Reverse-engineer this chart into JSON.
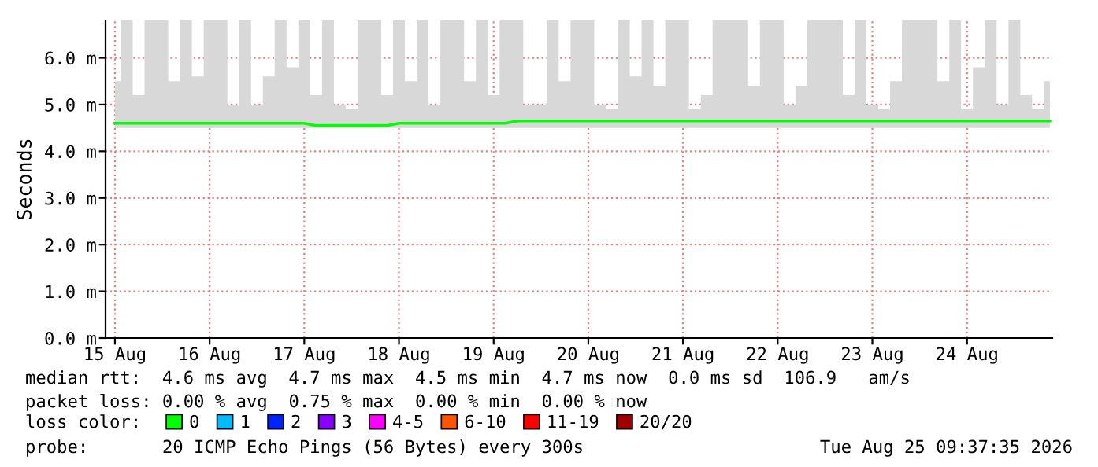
{
  "chart_data": {
    "type": "line",
    "ylabel": "Seconds",
    "x": [
      "2026-08-15T12:00",
      "2026-08-15T15:00",
      "2026-08-15T18:00",
      "2026-08-15T21:00",
      "2026-08-16T00:00",
      "2026-08-16T03:00",
      "2026-08-16T06:00",
      "2026-08-16T09:00",
      "2026-08-16T12:00",
      "2026-08-16T15:00",
      "2026-08-16T18:00",
      "2026-08-16T21:00",
      "2026-08-17T00:00",
      "2026-08-17T03:00",
      "2026-08-17T06:00",
      "2026-08-17T09:00",
      "2026-08-17T12:00",
      "2026-08-17T15:00",
      "2026-08-17T18:00",
      "2026-08-17T21:00",
      "2026-08-18T00:00",
      "2026-08-18T03:00",
      "2026-08-18T06:00",
      "2026-08-18T09:00",
      "2026-08-18T12:00",
      "2026-08-18T15:00",
      "2026-08-18T18:00",
      "2026-08-18T21:00",
      "2026-08-19T00:00",
      "2026-08-19T03:00",
      "2026-08-19T06:00",
      "2026-08-19T09:00",
      "2026-08-19T12:00",
      "2026-08-19T15:00",
      "2026-08-19T18:00",
      "2026-08-19T21:00",
      "2026-08-20T00:00",
      "2026-08-20T03:00",
      "2026-08-20T06:00",
      "2026-08-20T09:00",
      "2026-08-20T12:00",
      "2026-08-20T15:00",
      "2026-08-20T18:00",
      "2026-08-20T21:00",
      "2026-08-21T00:00",
      "2026-08-21T03:00",
      "2026-08-21T06:00",
      "2026-08-21T09:00",
      "2026-08-21T12:00",
      "2026-08-21T15:00",
      "2026-08-21T18:00",
      "2026-08-21T21:00",
      "2026-08-22T00:00",
      "2026-08-22T03:00",
      "2026-08-22T06:00",
      "2026-08-22T09:00",
      "2026-08-22T12:00",
      "2026-08-22T15:00",
      "2026-08-22T18:00",
      "2026-08-22T21:00",
      "2026-08-23T00:00",
      "2026-08-23T03:00",
      "2026-08-23T06:00",
      "2026-08-23T09:00",
      "2026-08-23T12:00",
      "2026-08-23T15:00",
      "2026-08-23T18:00",
      "2026-08-23T21:00",
      "2026-08-24T00:00",
      "2026-08-24T03:00",
      "2026-08-24T06:00",
      "2026-08-24T09:00",
      "2026-08-24T12:00",
      "2026-08-24T15:00",
      "2026-08-24T18:00",
      "2026-08-24T21:00",
      "2026-08-25T00:00",
      "2026-08-25T03:00",
      "2026-08-25T06:00",
      "2026-08-25T09:00"
    ],
    "series": [
      {
        "name": "0",
        "color": "#00ff00",
        "values": [
          4.6,
          4.6,
          4.6,
          4.6,
          4.6,
          4.6,
          4.6,
          4.6,
          4.6,
          4.6,
          4.6,
          4.6,
          4.6,
          4.6,
          4.6,
          4.6,
          4.6,
          4.55,
          4.55,
          4.55,
          4.55,
          4.55,
          4.55,
          4.55,
          4.6,
          4.6,
          4.6,
          4.6,
          4.6,
          4.6,
          4.6,
          4.6,
          4.6,
          4.6,
          4.65,
          4.65,
          4.65,
          4.65,
          4.65,
          4.65,
          4.65,
          4.65,
          4.65,
          4.65,
          4.65,
          4.65,
          4.65,
          4.65,
          4.65,
          4.65,
          4.65,
          4.65,
          4.65,
          4.65,
          4.65,
          4.65,
          4.65,
          4.65,
          4.65,
          4.65,
          4.65,
          4.65,
          4.65,
          4.65,
          4.65,
          4.65,
          4.65,
          4.65,
          4.65,
          4.65,
          4.65,
          4.65,
          4.65,
          4.65,
          4.65,
          4.65,
          4.65,
          4.65,
          4.65,
          4.65
        ],
        "lower": [
          4.5,
          4.5,
          4.5,
          4.5,
          4.5,
          4.5,
          4.5,
          4.5,
          4.5,
          4.5,
          4.5,
          4.5,
          4.5,
          4.5,
          4.5,
          4.5,
          4.5,
          4.5,
          4.5,
          4.5,
          4.5,
          4.5,
          4.5,
          4.5,
          4.5,
          4.5,
          4.5,
          4.5,
          4.5,
          4.5,
          4.5,
          4.5,
          4.5,
          4.5,
          4.5,
          4.5,
          4.5,
          4.5,
          4.5,
          4.5,
          4.5,
          4.5,
          4.5,
          4.5,
          4.5,
          4.5,
          4.5,
          4.5,
          4.5,
          4.5,
          4.5,
          4.5,
          4.5,
          4.5,
          4.5,
          4.5,
          4.5,
          4.5,
          4.5,
          4.5,
          4.5,
          4.5,
          4.5,
          4.5,
          4.5,
          4.5,
          4.5,
          4.5,
          4.5,
          4.5,
          4.5,
          4.5,
          4.5,
          4.5,
          4.5,
          4.5,
          4.5,
          4.5,
          4.5,
          4.5
        ],
        "upper": [
          5.5,
          6.8,
          5.2,
          6.8,
          6.8,
          5.5,
          6.8,
          5.6,
          6.8,
          6.8,
          5.0,
          6.8,
          5.0,
          5.6,
          6.8,
          5.8,
          6.8,
          5.2,
          6.8,
          5.0,
          4.9,
          6.8,
          6.8,
          5.2,
          6.8,
          5.5,
          6.8,
          5.0,
          6.8,
          6.8,
          5.5,
          6.8,
          5.2,
          6.8,
          6.8,
          5.0,
          5.0,
          6.8,
          5.5,
          6.8,
          6.8,
          5.0,
          4.9,
          6.8,
          5.6,
          6.8,
          5.4,
          6.8,
          6.8,
          4.9,
          5.2,
          6.8,
          6.8,
          6.8,
          5.4,
          6.8,
          6.8,
          5.0,
          5.4,
          6.8,
          6.8,
          6.8,
          5.2,
          6.8,
          5.0,
          4.9,
          5.5,
          6.8,
          6.8,
          6.8,
          5.5,
          6.8,
          4.9,
          5.8,
          6.8,
          5.0,
          6.8,
          5.2,
          4.9,
          5.5
        ]
      },
      {
        "name": "1",
        "color": "#00bbff",
        "values": [
          null,
          null,
          null,
          null,
          null,
          null,
          null,
          null,
          null,
          null,
          null,
          null,
          null,
          null,
          null,
          null,
          null,
          null,
          null,
          null,
          null,
          null,
          null,
          null,
          null,
          null,
          null,
          null,
          null,
          null,
          null,
          null,
          null,
          null,
          null,
          null,
          null,
          null,
          null,
          null,
          null,
          null,
          null,
          null,
          null,
          null,
          null,
          null,
          null,
          null,
          null,
          null,
          null,
          null,
          null,
          null,
          null,
          null,
          null,
          null,
          null,
          null,
          null,
          null,
          null,
          null,
          null,
          null,
          null,
          null,
          null,
          null,
          null,
          null,
          null,
          null,
          null,
          null,
          null,
          null
        ]
      },
      {
        "name": "2",
        "color": "#0022ff",
        "values": [
          null,
          null,
          null,
          null,
          null,
          null,
          null,
          null,
          null,
          null,
          null,
          null,
          null,
          null,
          null,
          null,
          null,
          null,
          null,
          null,
          null,
          null,
          null,
          null,
          null,
          null,
          null,
          null,
          null,
          null,
          null,
          null,
          null,
          null,
          null,
          null,
          null,
          null,
          null,
          null,
          null,
          null,
          null,
          null,
          null,
          null,
          null,
          null,
          null,
          null,
          null,
          null,
          null,
          null,
          null,
          null,
          null,
          null,
          null,
          null,
          null,
          null,
          null,
          null,
          null,
          null,
          null,
          null,
          null,
          null,
          null,
          null,
          null,
          null,
          null,
          null,
          null,
          null,
          null,
          null
        ]
      },
      {
        "name": "3",
        "color": "#8a00ff",
        "values": [
          null,
          null,
          null,
          null,
          null,
          null,
          null,
          null,
          null,
          null,
          null,
          null,
          null,
          null,
          null,
          null,
          null,
          null,
          null,
          null,
          null,
          null,
          null,
          null,
          null,
          null,
          null,
          null,
          null,
          null,
          null,
          null,
          null,
          null,
          null,
          null,
          null,
          null,
          null,
          null,
          null,
          null,
          null,
          null,
          null,
          null,
          null,
          null,
          null,
          null,
          null,
          null,
          null,
          null,
          null,
          null,
          null,
          null,
          null,
          null,
          null,
          null,
          null,
          null,
          null,
          null,
          null,
          null,
          null,
          null,
          null,
          null,
          null,
          null,
          null,
          null,
          null,
          null,
          null,
          null
        ]
      },
      {
        "name": "4-5",
        "color": "#ff00ff",
        "values": [
          null,
          null,
          null,
          null,
          null,
          null,
          null,
          null,
          null,
          null,
          null,
          null,
          null,
          null,
          null,
          null,
          null,
          null,
          null,
          null,
          null,
          null,
          null,
          null,
          null,
          null,
          null,
          null,
          null,
          null,
          null,
          null,
          null,
          null,
          null,
          null,
          null,
          null,
          null,
          null,
          null,
          null,
          null,
          null,
          null,
          null,
          null,
          null,
          null,
          null,
          null,
          null,
          null,
          null,
          null,
          null,
          null,
          null,
          null,
          null,
          null,
          null,
          null,
          null,
          null,
          null,
          null,
          null,
          null,
          null,
          null,
          null,
          null,
          null,
          null,
          null,
          null,
          null,
          null,
          null
        ]
      },
      {
        "name": "6-10",
        "color": "#ff5500",
        "values": [
          null,
          null,
          null,
          null,
          null,
          null,
          null,
          null,
          null,
          null,
          null,
          null,
          null,
          null,
          null,
          null,
          null,
          null,
          null,
          null,
          null,
          null,
          null,
          null,
          null,
          null,
          null,
          null,
          null,
          null,
          null,
          null,
          null,
          null,
          null,
          null,
          null,
          null,
          null,
          null,
          null,
          null,
          null,
          null,
          null,
          null,
          null,
          null,
          null,
          null,
          null,
          null,
          null,
          null,
          null,
          null,
          null,
          null,
          null,
          null,
          null,
          null,
          null,
          null,
          null,
          null,
          null,
          null,
          null,
          null,
          null,
          null,
          null,
          null,
          null,
          null,
          null,
          null,
          null,
          null
        ]
      },
      {
        "name": "11-19",
        "color": "#ff0000",
        "values": [
          null,
          null,
          null,
          null,
          null,
          null,
          null,
          null,
          null,
          null,
          null,
          null,
          null,
          null,
          null,
          null,
          null,
          null,
          null,
          null,
          null,
          null,
          null,
          null,
          null,
          null,
          null,
          null,
          null,
          null,
          null,
          null,
          null,
          null,
          null,
          null,
          null,
          null,
          null,
          null,
          null,
          null,
          null,
          null,
          null,
          null,
          null,
          null,
          null,
          null,
          null,
          null,
          null,
          null,
          null,
          null,
          null,
          null,
          null,
          null,
          null,
          null,
          null,
          null,
          null,
          null,
          null,
          null,
          null,
          null,
          null,
          null,
          null,
          null,
          null,
          null,
          null,
          null,
          null,
          null
        ]
      },
      {
        "name": "20/20",
        "color": "#a10000",
        "values": [
          null,
          null,
          null,
          null,
          null,
          null,
          null,
          null,
          null,
          null,
          null,
          null,
          null,
          null,
          null,
          null,
          null,
          null,
          null,
          null,
          null,
          null,
          null,
          null,
          null,
          null,
          null,
          null,
          null,
          null,
          null,
          null,
          null,
          null,
          null,
          null,
          null,
          null,
          null,
          null,
          null,
          null,
          null,
          null,
          null,
          null,
          null,
          null,
          null,
          null,
          null,
          null,
          null,
          null,
          null,
          null,
          null,
          null,
          null,
          null,
          null,
          null,
          null,
          null,
          null,
          null,
          null,
          null,
          null,
          null,
          null,
          null,
          null,
          null,
          null,
          null,
          null,
          null,
          null,
          null
        ]
      }
    ],
    "legend": "bottom",
    "legend_title": "loss color:",
    "xlim": [
      "2026-08-15T09:37",
      "2026-08-25T09:37"
    ],
    "xticks": [
      {
        "value": "2026-08-15T12:00",
        "label": "15 Aug"
      },
      {
        "value": "2026-08-16T12:00",
        "label": "16 Aug"
      },
      {
        "value": "2026-08-17T12:00",
        "label": "17 Aug"
      },
      {
        "value": "2026-08-18T12:00",
        "label": "18 Aug"
      },
      {
        "value": "2026-08-19T12:00",
        "label": "19 Aug"
      },
      {
        "value": "2026-08-20T12:00",
        "label": "20 Aug"
      },
      {
        "value": "2026-08-21T12:00",
        "label": "21 Aug"
      },
      {
        "value": "2026-08-22T12:00",
        "label": "22 Aug"
      },
      {
        "value": "2026-08-23T12:00",
        "label": "23 Aug"
      },
      {
        "value": "2026-08-24T12:00",
        "label": "24 Aug"
      }
    ],
    "ylim": [
      0,
      6.8
    ],
    "yticks": [
      {
        "value": 0,
        "label": "0.0 m"
      },
      {
        "value": 1,
        "label": "1.0 m"
      },
      {
        "value": 2,
        "label": "2.0 m"
      },
      {
        "value": 3,
        "label": "3.0 m"
      },
      {
        "value": 4,
        "label": "4.0 m"
      },
      {
        "value": 5,
        "label": "5.0 m"
      },
      {
        "value": 6,
        "label": "6.0 m"
      }
    ],
    "grid": true,
    "marker": "none",
    "line_style": "solid",
    "annotations": [
      "median rtt:  4.6 ms avg  4.7 ms max  4.5 ms min  4.7 ms now  0.0 ms sd  106.9   am/s",
      "packet loss: 0.00 % avg  0.75 % max  0.00 % min  0.00 % now",
      "probe:       20 ICMP Echo Pings (56 Bytes) every 300s",
      "Tue Aug 25 09:37:35 2026"
    ]
  }
}
